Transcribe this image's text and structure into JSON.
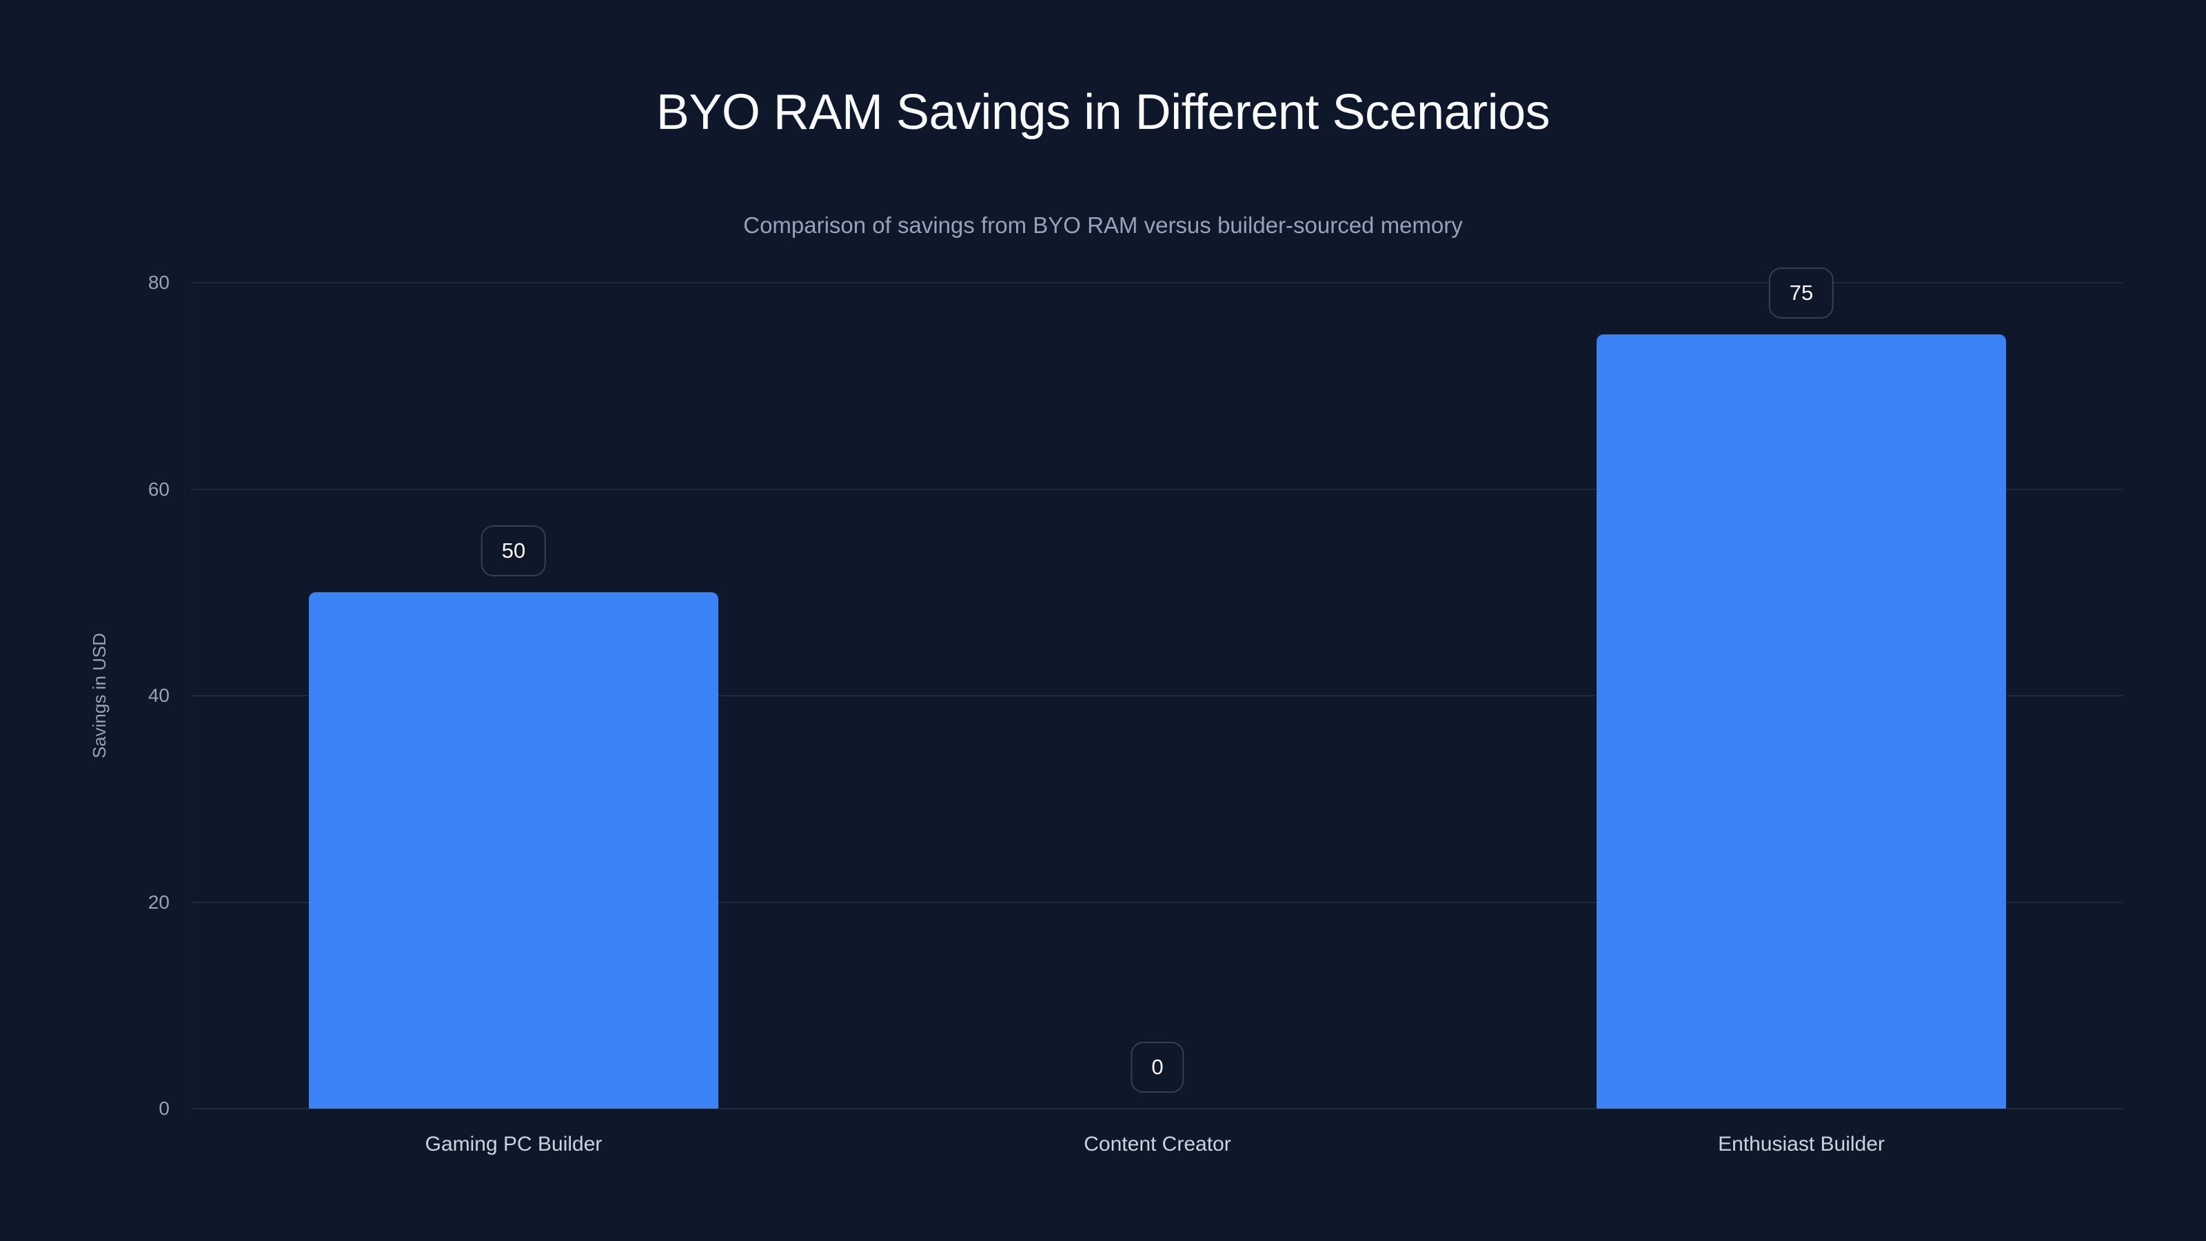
{
  "chart_data": {
    "type": "bar",
    "title": "BYO RAM Savings in Different Scenarios",
    "subtitle": "Comparison of savings from BYO RAM versus builder-sourced memory",
    "xlabel": "",
    "ylabel": "Savings in USD",
    "categories": [
      "Gaming PC Builder",
      "Content Creator",
      "Enthusiast Builder"
    ],
    "values": [
      50,
      0,
      75
    ],
    "value_labels": [
      "50",
      "0",
      "75"
    ],
    "ylim": [
      0,
      80
    ],
    "yticks": [
      0,
      20,
      40,
      60,
      80
    ],
    "grid": true,
    "legend": null,
    "colors": {
      "background": "#0f172a",
      "bar": "#3b82f6",
      "gridline": "#1e293b",
      "title": "#f8fafc",
      "subtitle": "#94a3b8",
      "axis_text": "#94a3b8",
      "category_text": "#cbd5e1",
      "label_border": "#334155"
    }
  }
}
